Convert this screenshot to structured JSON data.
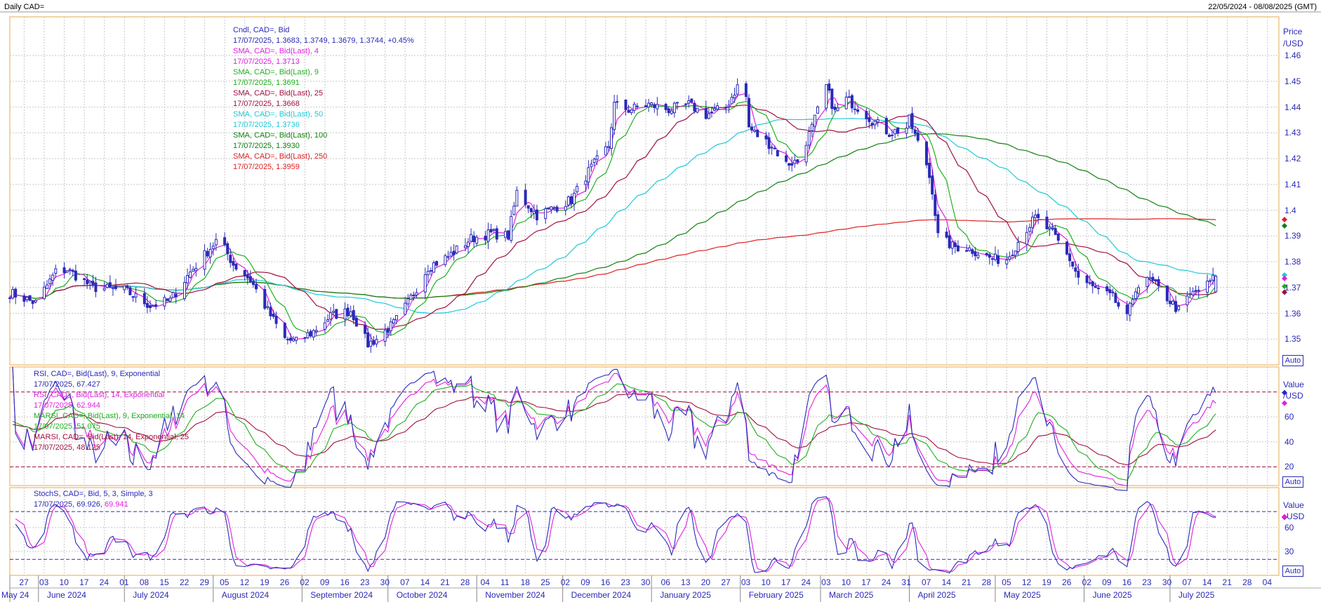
{
  "header": {
    "title": "Daily CAD=",
    "date_range": "22/05/2024 - 08/08/2025 (GMT)"
  },
  "colors": {
    "candle": "#2a2ab8",
    "sma4": "#e020e0",
    "sma9": "#20b020",
    "sma25": "#a01040",
    "sma50": "#20c8d8",
    "sma100": "#108010",
    "sma250": "#e02020",
    "axis_text": "#2a2ab8",
    "grid": "#c8c8c8",
    "panel_border": "#e8a848"
  },
  "legend_main": [
    {
      "text": "Cndl, CAD=, Bid",
      "color": "#2a2ab8"
    },
    {
      "text": "17/07/2025, 1.3683, 1.3749, 1.3679, 1.3744, +0.45%",
      "color": "#2a2ab8"
    },
    {
      "text": "SMA, CAD=, Bid(Last), 4",
      "color": "#e020e0"
    },
    {
      "text": "17/07/2025, 1.3713",
      "color": "#e020e0"
    },
    {
      "text": "SMA, CAD=, Bid(Last), 9",
      "color": "#20b020"
    },
    {
      "text": "17/07/2025, 1.3691",
      "color": "#20b020"
    },
    {
      "text": "SMA, CAD=, Bid(Last), 25",
      "color": "#a01040"
    },
    {
      "text": "17/07/2025, 1.3668",
      "color": "#a01040"
    },
    {
      "text": "SMA, CAD=, Bid(Last), 50",
      "color": "#20c8d8"
    },
    {
      "text": "17/07/2025, 1.3736",
      "color": "#20c8d8"
    },
    {
      "text": "SMA, CAD=, Bid(Last), 100",
      "color": "#108010"
    },
    {
      "text": "17/07/2025, 1.3930",
      "color": "#108010"
    },
    {
      "text": "SMA, CAD=, Bid(Last), 250",
      "color": "#e02020"
    },
    {
      "text": "17/07/2025, 1.3959",
      "color": "#e02020"
    }
  ],
  "legend_rsi": [
    {
      "text": "RSI, CAD=, Bid(Last), 9, Exponential",
      "color": "#2a2ab8"
    },
    {
      "text": "17/07/2025, 67.427",
      "color": "#2a2ab8"
    },
    {
      "text": "RSI, CAD=, Bid(Last), 14, Exponential",
      "color": "#e020e0"
    },
    {
      "text": "17/07/2025, 62.944",
      "color": "#e020e0"
    },
    {
      "text": "MARSI, CAD=, Bid(Last), 9, Exponential, 14",
      "color": "#20b020"
    },
    {
      "text": "17/07/2025, 51.075",
      "color": "#20b020"
    },
    {
      "text": "MARSI, CAD=, Bid(Last), 14, Exponential, 25",
      "color": "#a01040"
    },
    {
      "text": "17/07/2025, 48.125",
      "color": "#a01040"
    }
  ],
  "legend_stoch": [
    {
      "text": "StochS, CAD=, Bid, 5, 3, Simple, 3",
      "color": "#2a2ab8"
    },
    {
      "text": "17/07/2025, 69.926, ",
      "color": "#2a2ab8"
    },
    {
      "text": "69.941",
      "color": "#e020e0"
    }
  ],
  "axes": {
    "price_title": "Price",
    "price_unit": "/USD",
    "rsi_title": "Value",
    "rsi_unit": "/USD",
    "stoch_title": "Value",
    "stoch_unit": "USD",
    "auto_label": "Auto"
  },
  "chart_data": [
    {
      "type": "candlestick",
      "name": "price",
      "ylim": [
        1.34,
        1.475
      ],
      "yticks": [
        1.35,
        1.36,
        1.37,
        1.38,
        1.39,
        1.4,
        1.41,
        1.42,
        1.43,
        1.44,
        1.45,
        1.46
      ],
      "ytick_labels": [
        "1.35",
        "1.36",
        "1.37",
        "1.38",
        "1.39",
        "1.4",
        "1.41",
        "1.42",
        "1.43",
        "1.44",
        "1.45",
        "1.46"
      ],
      "x_start": "2024-05-22",
      "x_end": "2025-08-08",
      "close_anchors": [
        [
          "2024-05-22",
          1.368
        ],
        [
          "2024-05-31",
          1.364
        ],
        [
          "2024-06-07",
          1.376
        ],
        [
          "2024-06-11",
          1.377
        ],
        [
          "2024-06-20",
          1.37
        ],
        [
          "2024-07-01",
          1.369
        ],
        [
          "2024-07-10",
          1.363
        ],
        [
          "2024-07-17",
          1.365
        ],
        [
          "2024-07-24",
          1.376
        ],
        [
          "2024-08-02",
          1.388
        ],
        [
          "2024-08-05",
          1.385
        ],
        [
          "2024-08-08",
          1.379
        ],
        [
          "2024-08-14",
          1.373
        ],
        [
          "2024-08-20",
          1.361
        ],
        [
          "2024-08-26",
          1.35
        ],
        [
          "2024-08-30",
          1.349
        ],
        [
          "2024-09-05",
          1.353
        ],
        [
          "2024-09-11",
          1.359
        ],
        [
          "2024-09-18",
          1.361
        ],
        [
          "2024-09-24",
          1.348
        ],
        [
          "2024-09-27",
          1.35
        ],
        [
          "2024-10-03",
          1.356
        ],
        [
          "2024-10-08",
          1.364
        ],
        [
          "2024-10-15",
          1.378
        ],
        [
          "2024-10-22",
          1.382
        ],
        [
          "2024-10-30",
          1.389
        ],
        [
          "2024-11-06",
          1.391
        ],
        [
          "2024-11-12",
          1.39
        ],
        [
          "2024-11-15",
          1.407
        ],
        [
          "2024-11-22",
          1.398
        ],
        [
          "2024-11-28",
          1.401
        ],
        [
          "2024-12-04",
          1.404
        ],
        [
          "2024-12-10",
          1.415
        ],
        [
          "2024-12-17",
          1.425
        ],
        [
          "2024-12-19",
          1.441
        ],
        [
          "2024-12-24",
          1.439
        ],
        [
          "2024-12-31",
          1.441
        ],
        [
          "2025-01-07",
          1.439
        ],
        [
          "2025-01-14",
          1.441
        ],
        [
          "2025-01-20",
          1.437
        ],
        [
          "2025-01-27",
          1.44
        ],
        [
          "2025-01-31",
          1.448
        ],
        [
          "2025-02-03",
          1.444
        ],
        [
          "2025-02-04",
          1.432
        ],
        [
          "2025-02-07",
          1.429
        ],
        [
          "2025-02-12",
          1.425
        ],
        [
          "2025-02-17",
          1.418
        ],
        [
          "2025-02-21",
          1.419
        ],
        [
          "2025-02-26",
          1.432
        ],
        [
          "2025-03-03",
          1.448
        ],
        [
          "2025-03-06",
          1.438
        ],
        [
          "2025-03-10",
          1.443
        ],
        [
          "2025-03-14",
          1.44
        ],
        [
          "2025-03-19",
          1.435
        ],
        [
          "2025-03-25",
          1.43
        ],
        [
          "2025-03-31",
          1.432
        ],
        [
          "2025-04-01",
          1.435
        ],
        [
          "2025-04-04",
          1.426
        ],
        [
          "2025-04-07",
          1.418
        ],
        [
          "2025-04-09",
          1.408
        ],
        [
          "2025-04-11",
          1.39
        ],
        [
          "2025-04-16",
          1.386
        ],
        [
          "2025-04-22",
          1.385
        ],
        [
          "2025-04-30",
          1.381
        ],
        [
          "2025-05-05",
          1.381
        ],
        [
          "2025-05-12",
          1.393
        ],
        [
          "2025-05-15",
          1.397
        ],
        [
          "2025-05-21",
          1.391
        ],
        [
          "2025-05-27",
          1.381
        ],
        [
          "2025-05-30",
          1.374
        ],
        [
          "2025-06-04",
          1.37
        ],
        [
          "2025-06-11",
          1.366
        ],
        [
          "2025-06-16",
          1.358
        ],
        [
          "2025-06-19",
          1.37
        ],
        [
          "2025-06-24",
          1.373
        ],
        [
          "2025-06-30",
          1.366
        ],
        [
          "2025-07-04",
          1.361
        ],
        [
          "2025-07-08",
          1.367
        ],
        [
          "2025-07-14",
          1.371
        ],
        [
          "2025-07-17",
          1.3744
        ]
      ],
      "last_candle": {
        "date": "17/07/2025",
        "open": 1.3683,
        "high": 1.3749,
        "low": 1.3679,
        "close": 1.3744
      }
    },
    {
      "type": "line",
      "name": "rsi",
      "ylim": [
        5,
        100
      ],
      "yticks": [
        20,
        40,
        60
      ],
      "ytick_labels": [
        "20",
        "40",
        "60"
      ],
      "reference_lines": [
        20,
        80
      ]
    },
    {
      "type": "line",
      "name": "stochastic",
      "ylim": [
        0,
        110
      ],
      "yticks": [
        30,
        60
      ],
      "ytick_labels": [
        "30",
        "60"
      ],
      "reference_lines": [
        20,
        80
      ]
    }
  ],
  "xaxis": {
    "day_ticks": [
      [
        "2024-05-27",
        "27"
      ],
      [
        "2024-06-03",
        "03"
      ],
      [
        "2024-06-10",
        "10"
      ],
      [
        "2024-06-17",
        "17"
      ],
      [
        "2024-06-24",
        "24"
      ],
      [
        "2024-07-01",
        "01"
      ],
      [
        "2024-07-08",
        "08"
      ],
      [
        "2024-07-15",
        "15"
      ],
      [
        "2024-07-22",
        "22"
      ],
      [
        "2024-07-29",
        "29"
      ],
      [
        "2024-08-05",
        "05"
      ],
      [
        "2024-08-12",
        "12"
      ],
      [
        "2024-08-19",
        "19"
      ],
      [
        "2024-08-26",
        "26"
      ],
      [
        "2024-09-02",
        "02"
      ],
      [
        "2024-09-09",
        "09"
      ],
      [
        "2024-09-16",
        "16"
      ],
      [
        "2024-09-23",
        "23"
      ],
      [
        "2024-09-30",
        "30"
      ],
      [
        "2024-10-07",
        "07"
      ],
      [
        "2024-10-14",
        "14"
      ],
      [
        "2024-10-21",
        "21"
      ],
      [
        "2024-10-28",
        "28"
      ],
      [
        "2024-11-04",
        "04"
      ],
      [
        "2024-11-11",
        "11"
      ],
      [
        "2024-11-18",
        "18"
      ],
      [
        "2024-11-25",
        "25"
      ],
      [
        "2024-12-02",
        "02"
      ],
      [
        "2024-12-09",
        "09"
      ],
      [
        "2024-12-16",
        "16"
      ],
      [
        "2024-12-23",
        "23"
      ],
      [
        "2024-12-30",
        "30"
      ],
      [
        "2025-01-06",
        "06"
      ],
      [
        "2025-01-13",
        "13"
      ],
      [
        "2025-01-20",
        "20"
      ],
      [
        "2025-01-27",
        "27"
      ],
      [
        "2025-02-03",
        "03"
      ],
      [
        "2025-02-10",
        "10"
      ],
      [
        "2025-02-17",
        "17"
      ],
      [
        "2025-02-24",
        "24"
      ],
      [
        "2025-03-03",
        "03"
      ],
      [
        "2025-03-10",
        "10"
      ],
      [
        "2025-03-17",
        "17"
      ],
      [
        "2025-03-24",
        "24"
      ],
      [
        "2025-03-31",
        "31"
      ],
      [
        "2025-04-07",
        "07"
      ],
      [
        "2025-04-14",
        "14"
      ],
      [
        "2025-04-21",
        "21"
      ],
      [
        "2025-04-28",
        "28"
      ],
      [
        "2025-05-05",
        "05"
      ],
      [
        "2025-05-12",
        "12"
      ],
      [
        "2025-05-19",
        "19"
      ],
      [
        "2025-05-26",
        "26"
      ],
      [
        "2025-06-02",
        "02"
      ],
      [
        "2025-06-09",
        "09"
      ],
      [
        "2025-06-16",
        "16"
      ],
      [
        "2025-06-23",
        "23"
      ],
      [
        "2025-06-30",
        "30"
      ],
      [
        "2025-07-07",
        "07"
      ],
      [
        "2025-07-14",
        "14"
      ],
      [
        "2025-07-21",
        "21"
      ],
      [
        "2025-07-28",
        "28"
      ],
      [
        "2025-08-04",
        "04"
      ]
    ],
    "month_labels": [
      [
        "2024-05-22",
        "May 24"
      ],
      [
        "2024-06-01",
        "June 2024"
      ],
      [
        "2024-07-01",
        "July 2024"
      ],
      [
        "2024-08-01",
        "August 2024"
      ],
      [
        "2024-09-01",
        "September 2024"
      ],
      [
        "2024-10-01",
        "October 2024"
      ],
      [
        "2024-11-01",
        "November 2024"
      ],
      [
        "2024-12-01",
        "December 2024"
      ],
      [
        "2025-01-01",
        "January 2025"
      ],
      [
        "2025-02-01",
        "February 2025"
      ],
      [
        "2025-03-01",
        "March 2025"
      ],
      [
        "2025-04-01",
        "April 2025"
      ],
      [
        "2025-05-01",
        "May 2025"
      ],
      [
        "2025-06-01",
        "June 2025"
      ],
      [
        "2025-07-01",
        "July 2025"
      ]
    ]
  }
}
